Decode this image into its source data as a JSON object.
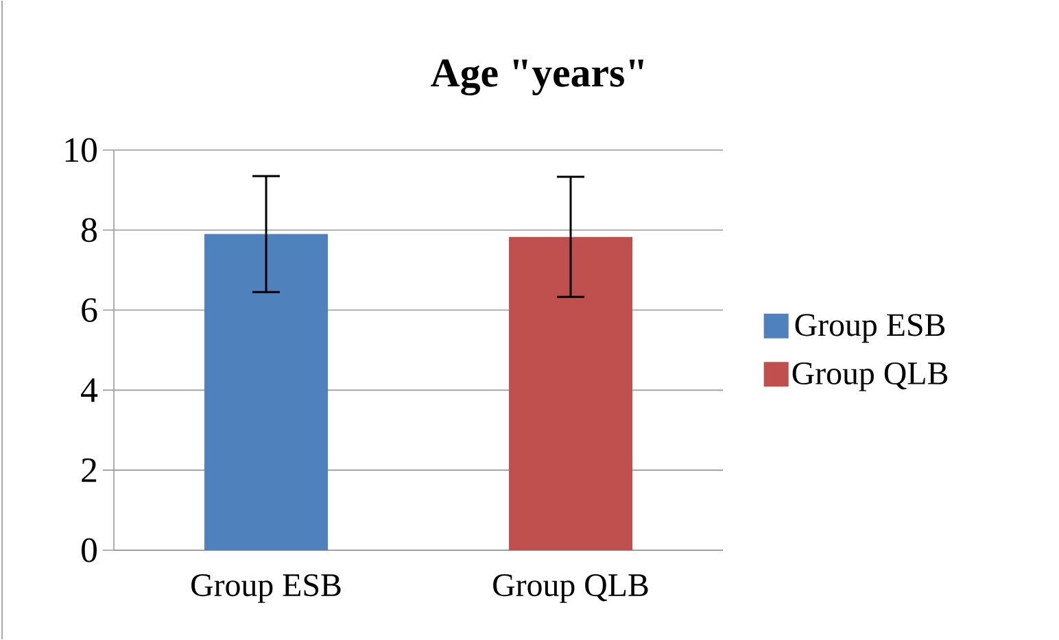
{
  "chart_data": {
    "type": "bar",
    "title": "Age \"years\"",
    "categories": [
      "Group ESB",
      "Group QLB"
    ],
    "series": [
      {
        "name": "Group ESB",
        "color": "#4f81bd",
        "values": [
          7.9,
          null
        ],
        "errors": [
          1.45,
          null
        ]
      },
      {
        "name": "Group QLB",
        "color": "#c0504d",
        "values": [
          null,
          7.83
        ],
        "errors": [
          null,
          1.5
        ]
      }
    ],
    "ylim": [
      0,
      10
    ],
    "yticks": [
      0,
      2,
      4,
      6,
      8,
      10
    ],
    "grid": "y",
    "legend": "right"
  }
}
